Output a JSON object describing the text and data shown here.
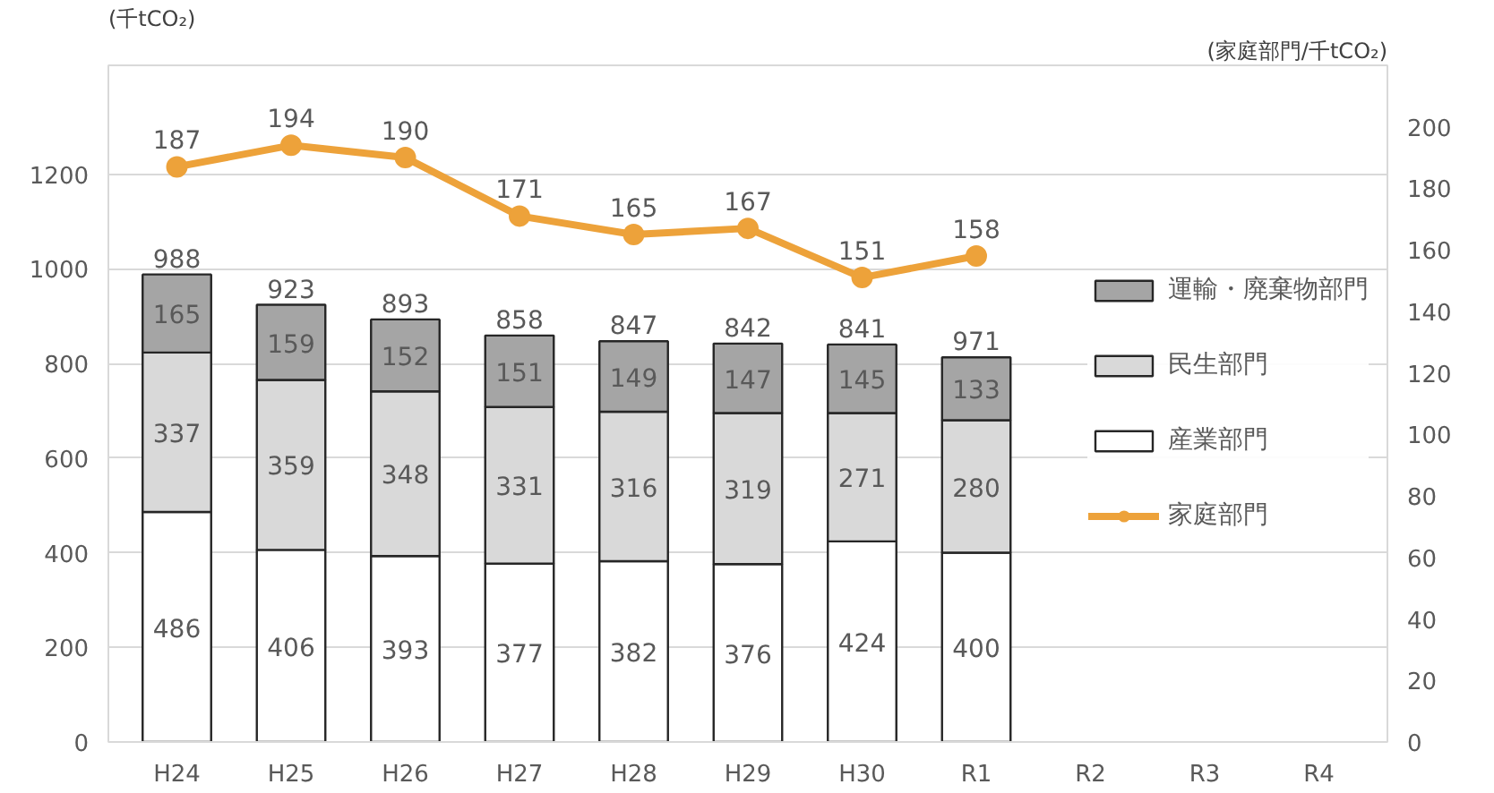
{
  "chart_data": {
    "type": "bar",
    "stacked": true,
    "categories": [
      "H24",
      "H25",
      "H26",
      "H27",
      "H28",
      "H29",
      "H30",
      "R1",
      "R2",
      "R3",
      "R4"
    ],
    "ylabel": "(千tCO₂)",
    "y2label": "(家庭部門/千tCO₂)",
    "ylim": [
      0,
      1430
    ],
    "yticks": [
      0,
      200,
      400,
      600,
      800,
      1000,
      1200
    ],
    "y2lim": [
      0,
      220
    ],
    "y2ticks": [
      0,
      20,
      40,
      60,
      80,
      100,
      120,
      140,
      160,
      180,
      200
    ],
    "series": [
      {
        "name": "産業部門",
        "color": "#ffffff",
        "values": [
          486,
          406,
          393,
          377,
          382,
          376,
          424,
          400,
          null,
          null,
          null
        ]
      },
      {
        "name": "民生部門",
        "color": "#d9d9d9",
        "values": [
          337,
          359,
          348,
          331,
          316,
          319,
          271,
          280,
          null,
          null,
          null
        ]
      },
      {
        "name": "運輸・廃棄物部門",
        "color": "#a5a5a5",
        "values": [
          165,
          159,
          152,
          151,
          149,
          147,
          145,
          133,
          null,
          null,
          null
        ]
      },
      {
        "name": "家庭部門",
        "type": "line",
        "axis": "y2",
        "color": "#eda23a",
        "marker": "circle",
        "values": [
          187,
          194,
          190,
          171,
          165,
          167,
          151,
          158,
          null,
          null,
          null
        ]
      }
    ],
    "annotations": [
      {
        "text": "988",
        "x": "H24",
        "y": 988
      },
      {
        "text": "923",
        "x": "H25",
        "y": 924
      },
      {
        "text": "893",
        "x": "H26",
        "y": 893
      },
      {
        "text": "858",
        "x": "H27",
        "y": 859
      },
      {
        "text": "847",
        "x": "H28",
        "y": 847
      },
      {
        "text": "842",
        "x": "H29",
        "y": 842
      },
      {
        "text": "841",
        "x": "H30",
        "y": 840
      },
      {
        "text": "971",
        "x": "R1",
        "y": 813
      }
    ],
    "data_labels": true,
    "grid": "y",
    "legend": "right"
  }
}
